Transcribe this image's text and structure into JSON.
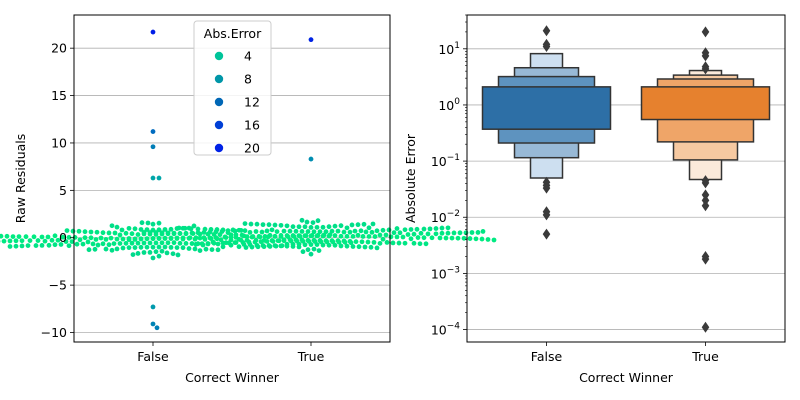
{
  "chart_data": [
    {
      "type": "swarm",
      "xlabel": "Correct Winner",
      "ylabel": "Raw Residuals",
      "categories": [
        "False",
        "True"
      ],
      "ylim": [
        -11,
        23.5
      ],
      "yticks": [
        -10,
        -5,
        0,
        5,
        10,
        15,
        20
      ],
      "ytick_labels": [
        "−10",
        "−5",
        "0",
        "5",
        "10",
        "15",
        "20"
      ],
      "grid": "y",
      "legend": {
        "title": "Abs.Error",
        "placement": "top-center",
        "entries": [
          {
            "label": "4",
            "value": 4,
            "color": "#00c49a"
          },
          {
            "label": "8",
            "value": 8,
            "color": "#0096a8"
          },
          {
            "label": "12",
            "value": 12,
            "color": "#0067b6"
          },
          {
            "label": "16",
            "value": 16,
            "color": "#0040d6"
          },
          {
            "label": "20",
            "value": 20,
            "color": "#0022e6"
          }
        ]
      },
      "outliers": {
        "False": [
          21.7,
          11.2,
          9.6,
          6.3,
          6.3,
          -7.3,
          -9.1,
          -9.5
        ],
        "True": [
          20.9,
          8.3
        ]
      },
      "bulk": {
        "False": {
          "center": -0.1,
          "spread": 1.6,
          "min": -4.8,
          "max": 3.3
        },
        "True": {
          "center": 0.2,
          "spread": 1.6,
          "min": -3.4,
          "max": 4.5
        }
      }
    },
    {
      "type": "boxen",
      "xlabel": "Correct Winner",
      "ylabel": "Absolute Error",
      "yscale": "log",
      "categories": [
        "False",
        "True"
      ],
      "ylim": [
        6e-05,
        40
      ],
      "yticks": [
        0.0001,
        0.001,
        0.01,
        0.1,
        1,
        10
      ],
      "ytick_labels": [
        {
          "base": "10",
          "exp": "−4"
        },
        {
          "base": "10",
          "exp": "−3"
        },
        {
          "base": "10",
          "exp": "−2"
        },
        {
          "base": "10",
          "exp": "−1"
        },
        {
          "base": "10",
          "exp": "0"
        },
        {
          "base": "10",
          "exp": "1"
        }
      ],
      "grid": "y",
      "series": [
        {
          "name": "False",
          "color": "#2d6fa6",
          "boxes": [
            {
              "low": 0.37,
              "high": 2.1,
              "color": "#2d6fa6"
            },
            {
              "low": 0.21,
              "high": 3.2,
              "color": "#5e93bf"
            },
            {
              "low": 0.115,
              "high": 4.6,
              "color": "#98b9d6"
            },
            {
              "low": 0.05,
              "high": 8.2,
              "color": "#cddff0"
            }
          ],
          "outliers": [
            21,
            12,
            11,
            0.042,
            0.037,
            0.033,
            0.0125,
            0.011,
            0.005
          ]
        },
        {
          "name": "True",
          "color": "#e6812e",
          "boxes": [
            {
              "low": 0.55,
              "high": 2.1,
              "color": "#e6812e"
            },
            {
              "low": 0.22,
              "high": 2.9,
              "color": "#efa568"
            },
            {
              "low": 0.105,
              "high": 3.4,
              "color": "#f6c9a1"
            },
            {
              "low": 0.047,
              "high": 4.1,
              "color": "#fbeadb"
            }
          ],
          "outliers": [
            20,
            8.5,
            7.5,
            4.8,
            4.4,
            0.045,
            0.041,
            0.025,
            0.02,
            0.016,
            0.002,
            0.0018,
            0.00011
          ]
        }
      ]
    }
  ]
}
